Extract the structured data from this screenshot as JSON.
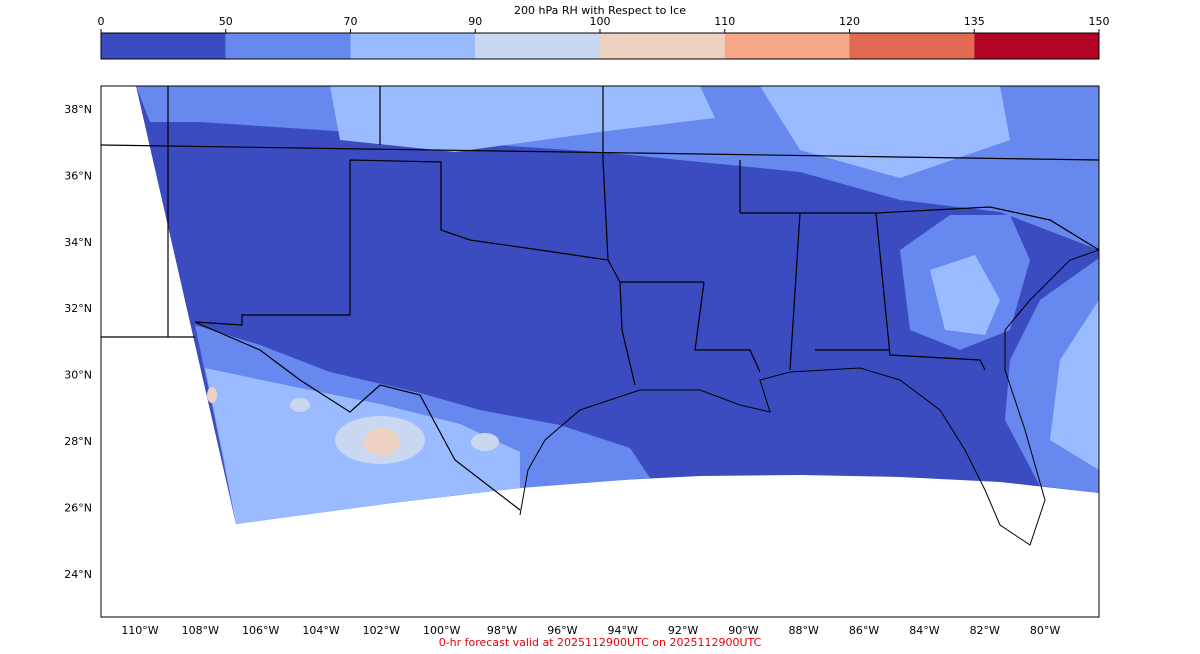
{
  "colorbar": {
    "title": "200 hPa RH with Respect to Ice",
    "ticks": [
      0,
      50,
      70,
      90,
      100,
      110,
      120,
      135,
      150
    ],
    "colors": [
      "#3b4cc0",
      "#6788ee",
      "#9abbff",
      "#c9d7f0",
      "#edd1c2",
      "#f7a889",
      "#e26952",
      "#b40426"
    ]
  },
  "lat_ticks": [
    {
      "value": 38,
      "label": "38°N"
    },
    {
      "value": 36,
      "label": "36°N"
    },
    {
      "value": 34,
      "label": "34°N"
    },
    {
      "value": 32,
      "label": "32°N"
    },
    {
      "value": 30,
      "label": "30°N"
    },
    {
      "value": 28,
      "label": "28°N"
    },
    {
      "value": 26,
      "label": "26°N"
    },
    {
      "value": 24,
      "label": "24°N"
    }
  ],
  "lon_ticks": [
    {
      "value": -110,
      "label": "110°W"
    },
    {
      "value": -108,
      "label": "108°W"
    },
    {
      "value": -106,
      "label": "106°W"
    },
    {
      "value": -104,
      "label": "104°W"
    },
    {
      "value": -102,
      "label": "102°W"
    },
    {
      "value": -100,
      "label": "100°W"
    },
    {
      "value": -98,
      "label": "98°W"
    },
    {
      "value": -96,
      "label": "96°W"
    },
    {
      "value": -94,
      "label": "94°W"
    },
    {
      "value": -92,
      "label": "92°W"
    },
    {
      "value": -90,
      "label": "90°W"
    },
    {
      "value": -88,
      "label": "88°W"
    },
    {
      "value": -86,
      "label": "86°W"
    },
    {
      "value": -84,
      "label": "84°W"
    },
    {
      "value": -82,
      "label": "82°W"
    },
    {
      "value": -80,
      "label": "80°W"
    }
  ],
  "footer": "0-hr forecast valid at 2025112900UTC on 2025112900UTC"
}
